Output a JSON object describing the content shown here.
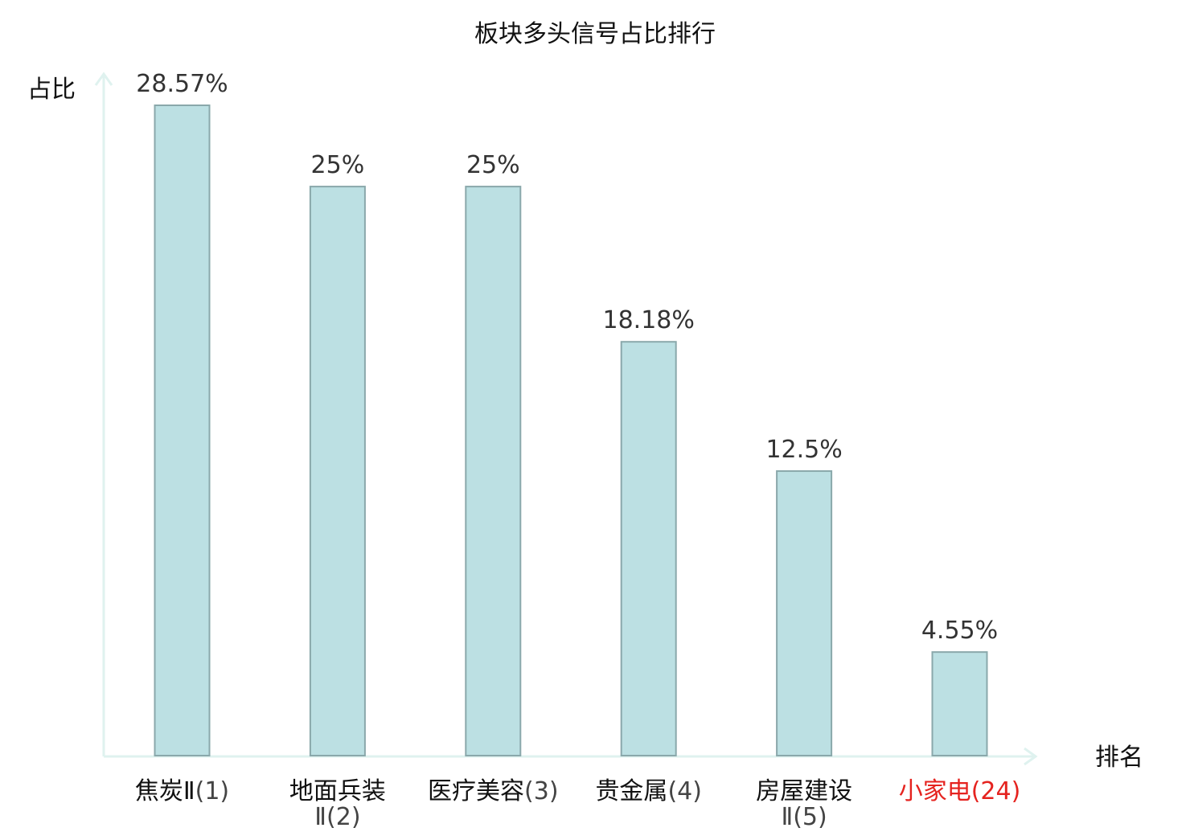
{
  "chart_data": {
    "type": "bar",
    "title": "板块多头信号占比排行",
    "ylabel": "占比",
    "xlabel": "排名",
    "ylim": [
      0,
      30
    ],
    "grid": false,
    "categories": [
      "焦炭Ⅱ(1)",
      "地面兵装Ⅱ(2)",
      "医疗美容(3)",
      "贵金属(4)",
      "房屋建设Ⅱ(5)",
      "小家电(24)"
    ],
    "values": [
      28.57,
      25,
      25,
      18.18,
      12.5,
      4.55
    ],
    "value_labels": [
      "28.57%",
      "25%",
      "25%",
      "18.18%",
      "12.5%",
      "4.55%"
    ],
    "category_label_lines": [
      [
        {
          "name": "焦炭Ⅱ",
          "rank": "(1)"
        }
      ],
      [
        {
          "name": "地面兵装",
          "rank": ""
        },
        {
          "name": "",
          "rank": "Ⅱ(2)"
        }
      ],
      [
        {
          "name": "医疗美容",
          "rank": "(3)"
        }
      ],
      [
        {
          "name": "贵金属",
          "rank": "(4)"
        }
      ],
      [
        {
          "name": "房屋建设",
          "rank": ""
        },
        {
          "name": "",
          "rank": "Ⅱ(5)"
        }
      ],
      [
        {
          "name": "小家电",
          "rank": "(24)"
        }
      ]
    ],
    "highlight_index": 5,
    "colors": {
      "bar_fill": "#bce0e3",
      "bar_stroke": "#8aa8ab",
      "axis": "#dff2ef",
      "label_name": "#111111",
      "label_rank": "#444444",
      "highlight": "#e5231f"
    }
  }
}
